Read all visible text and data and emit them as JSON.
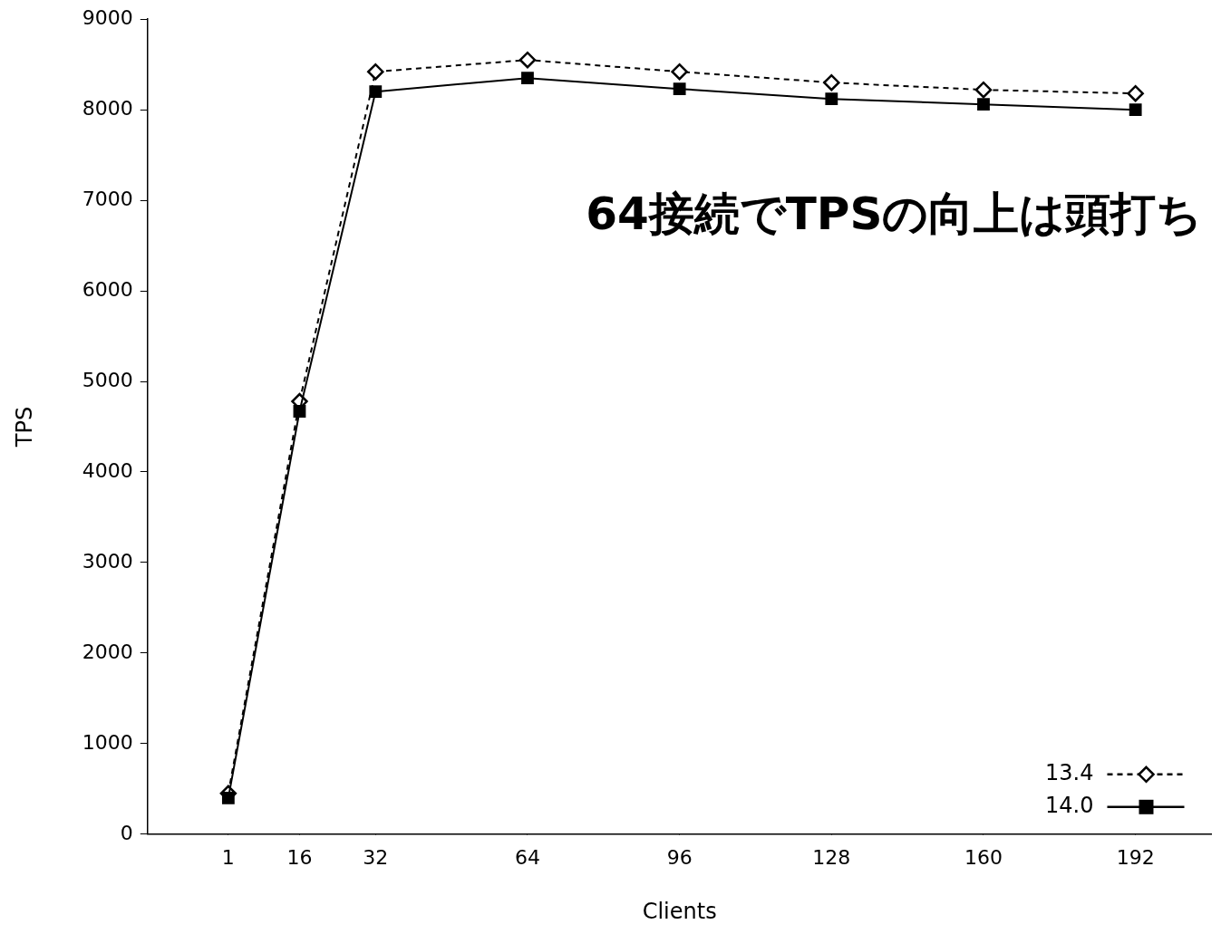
{
  "chart_data": {
    "type": "line",
    "xlabel": "Clients",
    "ylabel": "TPS",
    "x": [
      1,
      16,
      32,
      64,
      96,
      128,
      160,
      192
    ],
    "series": [
      {
        "name": "13.4",
        "color": "#000000",
        "marker": "diamond",
        "line_style": "dashed",
        "values": [
          450,
          4780,
          8420,
          8550,
          8420,
          8300,
          8220,
          8180
        ]
      },
      {
        "name": "14.0",
        "color": "#000000",
        "marker": "square",
        "line_style": "solid",
        "values": [
          400,
          4670,
          8200,
          8350,
          8230,
          8120,
          8060,
          8000
        ]
      }
    ],
    "xlim": [
      -16,
      208
    ],
    "xticks": [
      1,
      16,
      32,
      64,
      96,
      128,
      160,
      192
    ],
    "ylim": [
      0,
      9000
    ],
    "yticks": [
      0,
      1000,
      2000,
      3000,
      4000,
      5000,
      6000,
      7000,
      8000,
      9000
    ],
    "grid": false,
    "legend": "bottom right",
    "annotations": [
      "64接続でTPSの向上は頭打ち"
    ]
  }
}
